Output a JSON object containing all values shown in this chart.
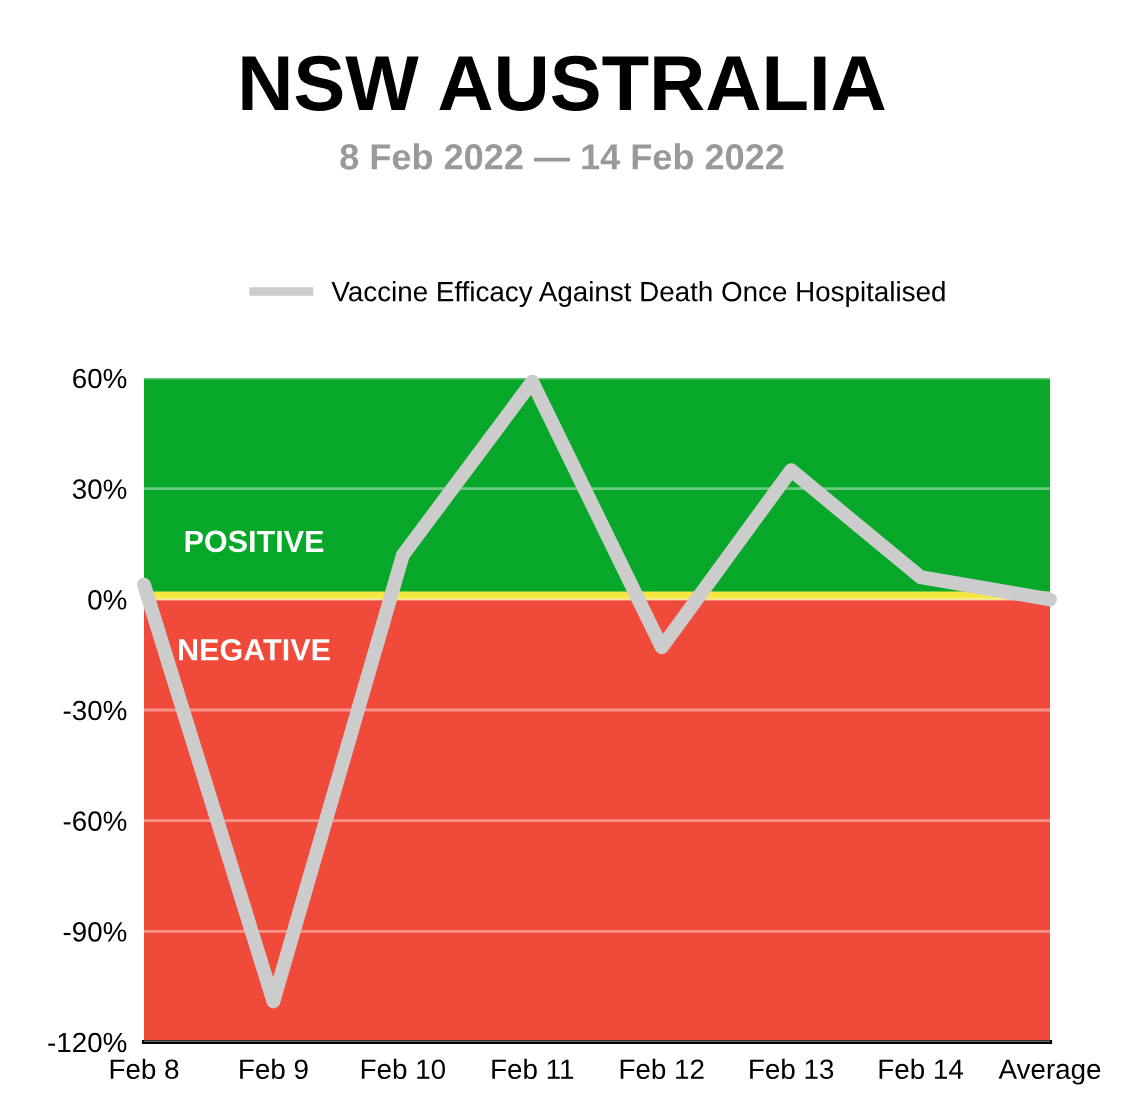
{
  "chart_data": {
    "type": "line",
    "title": "NSW AUSTRALIA",
    "subtitle": "8 Feb 2022 — 14 Feb 2022",
    "categories": [
      "Feb 8",
      "Feb 9",
      "Feb 10",
      "Feb 11",
      "Feb 12",
      "Feb 13",
      "Feb 14",
      "Average"
    ],
    "series": [
      {
        "name": "Vaccine Efficacy Against Death Once Hospitalised",
        "color": "#cccccc",
        "values": [
          4,
          -109,
          12,
          59,
          -13,
          35,
          6,
          0
        ]
      }
    ],
    "ylim": [
      -120,
      60
    ],
    "yticks": [
      {
        "value": -120,
        "label": "-120%"
      },
      {
        "value": -90,
        "label": "-90%"
      },
      {
        "value": -60,
        "label": "-60%"
      },
      {
        "value": -30,
        "label": "-30%"
      },
      {
        "value": 0,
        "label": "0%"
      },
      {
        "value": 30,
        "label": "30%"
      },
      {
        "value": 60,
        "label": "60%"
      }
    ],
    "bands": [
      {
        "axis": "y",
        "from": 0,
        "to": 60,
        "label": "POSITIVE",
        "color": "#07a82a"
      },
      {
        "axis": "y",
        "from": -120,
        "to": 0,
        "label": "NEGATIVE",
        "color": "#f04a3a"
      }
    ],
    "ref_lines": [
      {
        "axis": "y",
        "value": 1,
        "color": "#f5e642"
      }
    ],
    "grid": "y",
    "legend": "top",
    "marker": "none",
    "line_style": "solid"
  }
}
